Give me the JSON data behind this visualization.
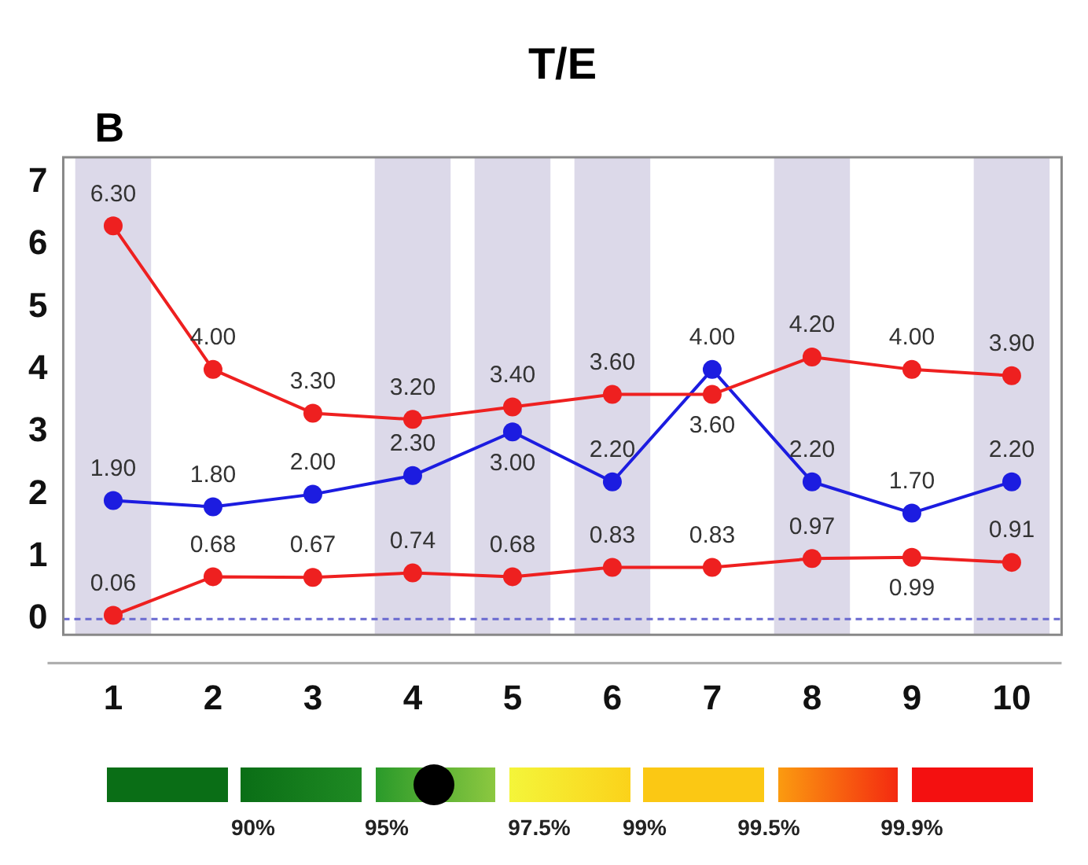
{
  "chart_data": {
    "type": "line",
    "title": "T/E",
    "subtitle": "B",
    "categories": [
      "1",
      "2",
      "3",
      "4",
      "5",
      "6",
      "7",
      "8",
      "9",
      "10"
    ],
    "series": [
      {
        "color": "#ee2020",
        "values": [
          6.3,
          4.0,
          3.3,
          3.2,
          3.4,
          3.6,
          3.6,
          4.2,
          4.0,
          3.9
        ],
        "value_labels": [
          "6.30",
          "4.00",
          "3.30",
          "3.20",
          "3.40",
          "3.60",
          "3.60",
          "4.20",
          "4.00",
          "3.90"
        ]
      },
      {
        "color": "#1c1ce0",
        "values": [
          1.9,
          1.8,
          2.0,
          2.3,
          3.0,
          2.2,
          4.0,
          2.2,
          1.7,
          2.2
        ],
        "value_labels": [
          "1.90",
          "1.80",
          "2.00",
          "2.30",
          "3.00",
          "2.20",
          "4.00",
          "2.20",
          "1.70",
          "2.20"
        ]
      },
      {
        "color": "#ee2020",
        "values": [
          0.06,
          0.68,
          0.67,
          0.74,
          0.68,
          0.83,
          0.83,
          0.97,
          0.99,
          0.91
        ],
        "value_labels": [
          "0.06",
          "0.68",
          "0.67",
          "0.74",
          "0.68",
          "0.83",
          "0.83",
          "0.97",
          "0.99",
          "0.91"
        ]
      }
    ],
    "ylim": [
      -0.25,
      7.4
    ],
    "yticks": [
      0,
      1,
      2,
      3,
      4,
      5,
      6,
      7
    ],
    "grid": false,
    "legend": false,
    "marker": "circle",
    "line_style": "solid",
    "bands": [
      {
        "axis": "x",
        "from": "1",
        "to": "1",
        "color": "#dcd9e9"
      },
      {
        "axis": "x",
        "from": "4",
        "to": "4",
        "color": "#dcd9e9"
      },
      {
        "axis": "x",
        "from": "5",
        "to": "5",
        "color": "#dcd9e9"
      },
      {
        "axis": "x",
        "from": "6",
        "to": "6",
        "color": "#dcd9e9"
      },
      {
        "axis": "x",
        "from": "8",
        "to": "8",
        "color": "#dcd9e9"
      },
      {
        "axis": "x",
        "from": "10",
        "to": "10",
        "color": "#dcd9e9"
      }
    ],
    "ref_lines": [
      {
        "axis": "y",
        "value": 0,
        "color": "#6a6ad0",
        "line_style": "dashed"
      }
    ],
    "annotations": [
      "90%",
      "95%",
      "97.5%",
      "99%",
      "99.5%",
      "99.9%"
    ]
  }
}
